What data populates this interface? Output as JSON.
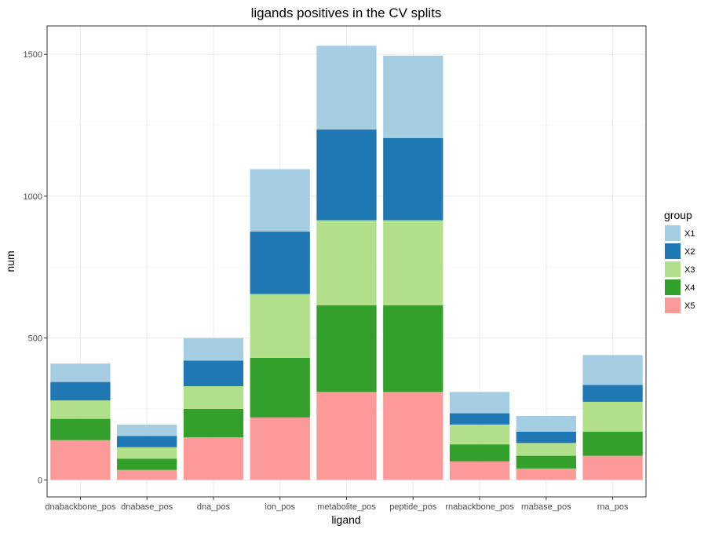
{
  "chart_data": {
    "type": "bar",
    "stacked": true,
    "title": "ligands positives in the CV splits",
    "xlabel": "ligand",
    "ylabel": "num",
    "categories": [
      "dnabackbone_pos",
      "dnabase_pos",
      "dna_pos",
      "ion_pos",
      "metabolite_pos",
      "peptide_pos",
      "rnabackbone_pos",
      "rnabase_pos",
      "rna_pos"
    ],
    "ylim": [
      -60,
      1600
    ],
    "yticks": [
      0,
      500,
      1000,
      1500
    ],
    "grid": true,
    "legend": {
      "title": "group",
      "placement": "right"
    },
    "series": [
      {
        "name": "X1",
        "color": "#A6CEE3",
        "values": [
          65,
          40,
          80,
          220,
          295,
          290,
          75,
          55,
          105
        ]
      },
      {
        "name": "X2",
        "color": "#1F78B4",
        "values": [
          65,
          40,
          90,
          220,
          320,
          290,
          40,
          40,
          60
        ]
      },
      {
        "name": "X3",
        "color": "#B2DF8A",
        "values": [
          65,
          40,
          80,
          225,
          300,
          300,
          70,
          45,
          105
        ]
      },
      {
        "name": "X4",
        "color": "#33A02C",
        "values": [
          75,
          40,
          100,
          210,
          305,
          305,
          60,
          45,
          85
        ]
      },
      {
        "name": "X5",
        "color": "#FB9A99",
        "values": [
          140,
          35,
          150,
          220,
          310,
          310,
          65,
          40,
          85
        ]
      }
    ]
  }
}
